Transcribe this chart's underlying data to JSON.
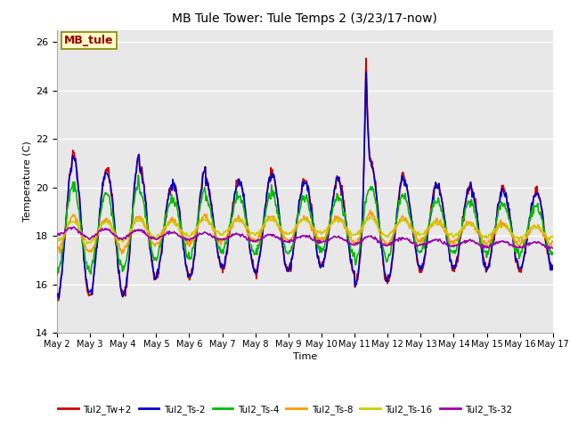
{
  "title": "MB Tule Tower: Tule Temps 2 (3/23/17-now)",
  "xlabel": "Time",
  "ylabel": "Temperature (C)",
  "ylim": [
    14,
    26.5
  ],
  "yticks": [
    14,
    16,
    18,
    20,
    22,
    24,
    26
  ],
  "xtick_labels": [
    "May 2",
    "May 3",
    "May 4",
    "May 5",
    "May 6",
    "May 7",
    "May 8",
    "May 9",
    "May 10",
    "May 11",
    "May 12",
    "May 13",
    "May 14",
    "May 15",
    "May 16",
    "May 17"
  ],
  "annotation_text": "MB_tule",
  "annotation_bg": "#ffffcc",
  "annotation_border": "#888800",
  "annotation_text_color": "#990000",
  "bg_color": "#e8e8e8",
  "line_colors": [
    "#cc0000",
    "#0000cc",
    "#00bb00",
    "#ff9900",
    "#cccc00",
    "#9900aa"
  ],
  "legend_labels": [
    "Tul2_Tw+2",
    "Tul2_Ts-2",
    "Tul2_Ts-4",
    "Tul2_Ts-8",
    "Tul2_Ts-16",
    "Tul2_Ts-32"
  ],
  "n_days": 15,
  "pts_per_day": 48
}
